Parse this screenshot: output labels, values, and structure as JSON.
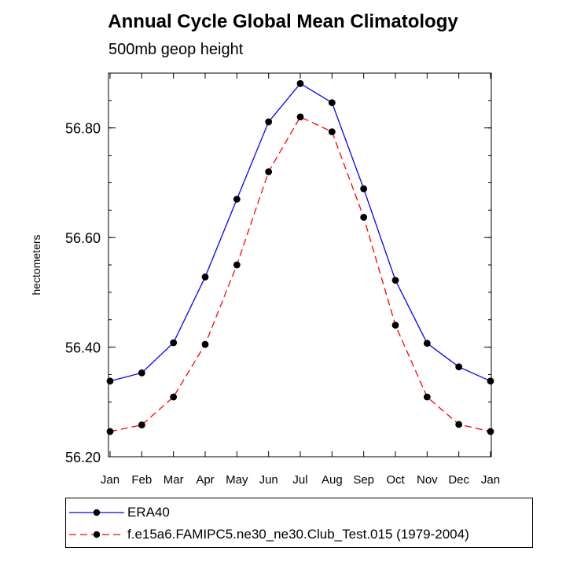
{
  "chart_data": {
    "type": "line",
    "title": "Annual Cycle Global Mean Climatology",
    "subtitle": "500mb geop height",
    "xlabel": "",
    "ylabel": "hectometers",
    "categories": [
      "Jan",
      "Feb",
      "Mar",
      "Apr",
      "May",
      "Jun",
      "Jul",
      "Aug",
      "Sep",
      "Oct",
      "Nov",
      "Dec",
      "Jan"
    ],
    "yticks": [
      "56.20",
      "56.40",
      "56.60",
      "56.80"
    ],
    "ylim": [
      56.2,
      56.9
    ],
    "grid": false,
    "legend_position": "bottom",
    "series": [
      {
        "name": "ERA40",
        "color": "#0000ff",
        "dash": "solid",
        "marker": "filled-circle",
        "values": [
          56.338,
          56.353,
          56.408,
          56.528,
          56.67,
          56.811,
          56.881,
          56.846,
          56.689,
          56.522,
          56.407,
          56.364,
          56.338
        ]
      },
      {
        "name": "f.e15a6.FAMIPC5.ne30_ne30.Club_Test.015 (1979-2004)",
        "color": "#ff0000",
        "dash": "dashed",
        "marker": "filled-circle",
        "values": [
          56.246,
          56.258,
          56.309,
          56.405,
          56.55,
          56.72,
          56.82,
          56.793,
          56.637,
          56.44,
          56.309,
          56.259,
          56.246
        ]
      }
    ]
  }
}
